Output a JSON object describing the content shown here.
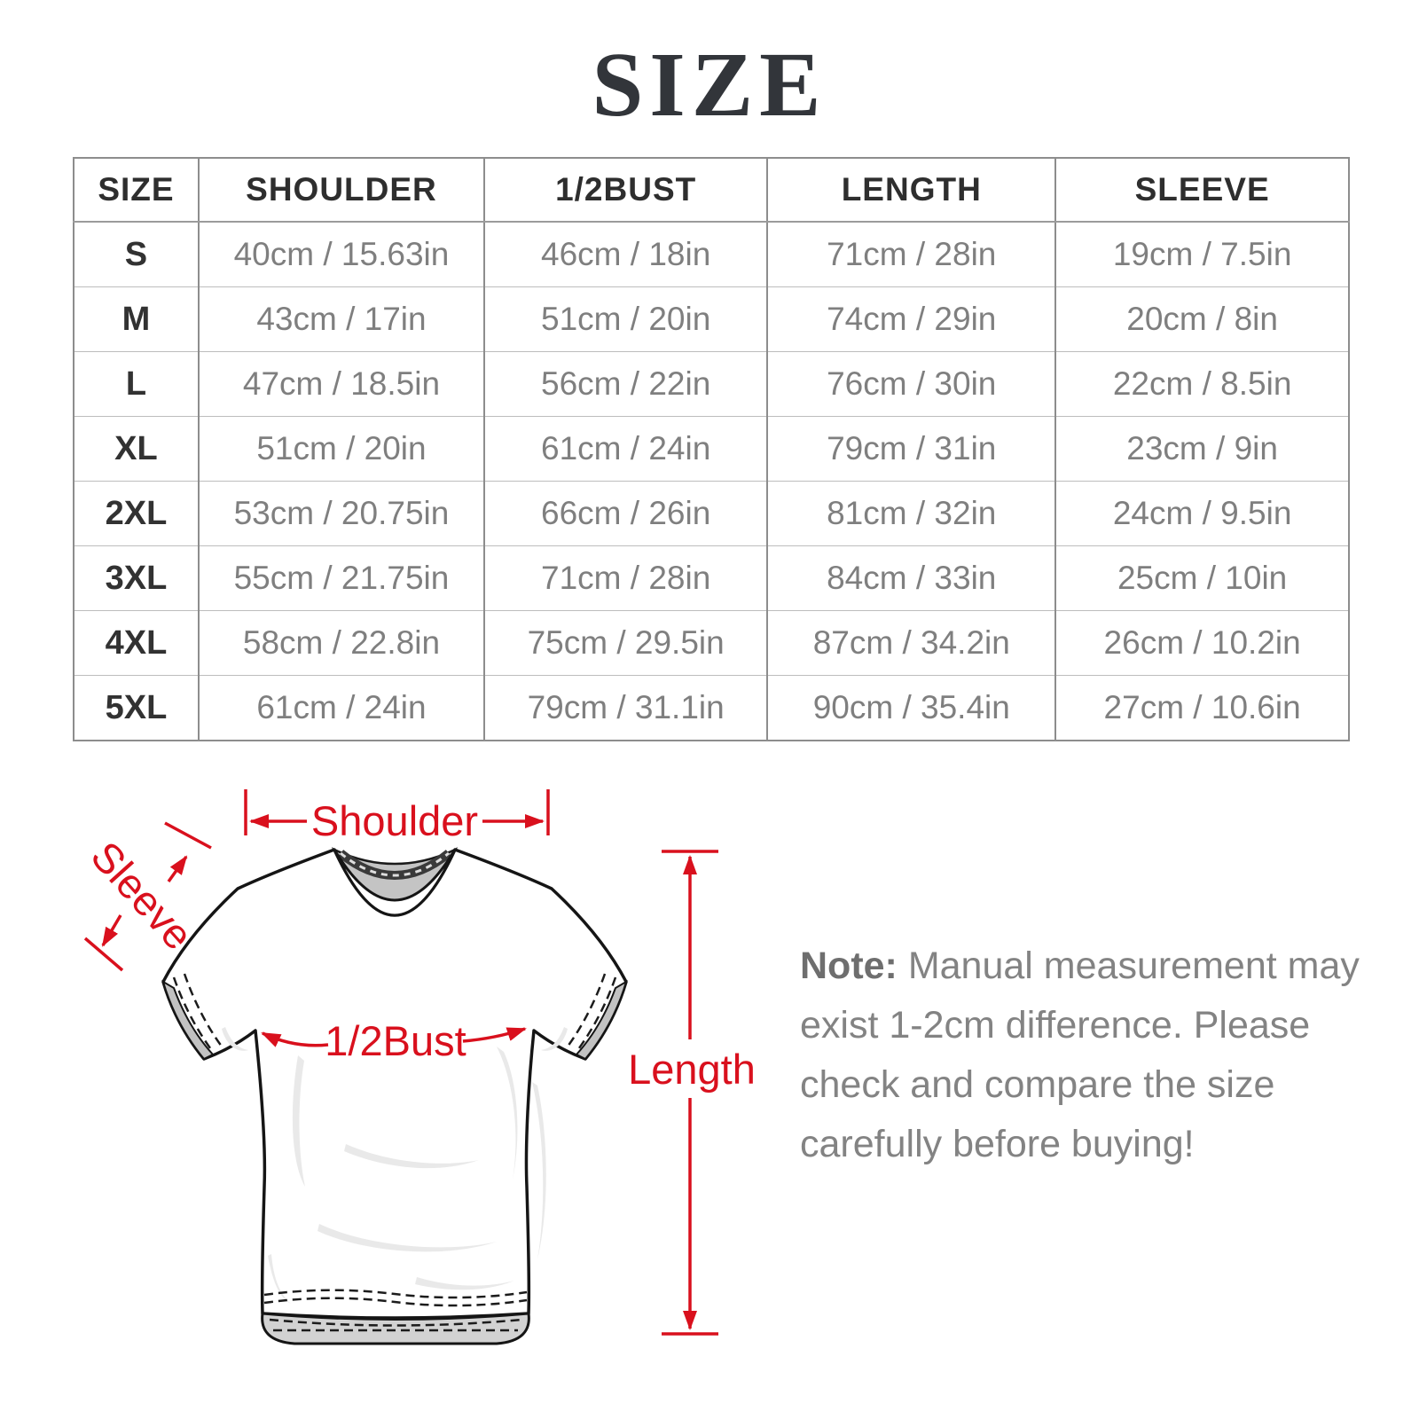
{
  "title": "SIZE",
  "table": {
    "columns": [
      "SIZE",
      "SHOULDER",
      "1/2BUST",
      "LENGTH",
      "SLEEVE"
    ],
    "rows": [
      [
        "S",
        "40cm / 15.63in",
        "46cm / 18in",
        "71cm / 28in",
        "19cm / 7.5in"
      ],
      [
        "M",
        "43cm / 17in",
        "51cm / 20in",
        "74cm / 29in",
        "20cm / 8in"
      ],
      [
        "L",
        "47cm / 18.5in",
        "56cm / 22in",
        "76cm / 30in",
        "22cm / 8.5in"
      ],
      [
        "XL",
        "51cm / 20in",
        "61cm / 24in",
        "79cm / 31in",
        "23cm / 9in"
      ],
      [
        "2XL",
        "53cm / 20.75in",
        "66cm / 26in",
        "81cm / 32in",
        "24cm / 9.5in"
      ],
      [
        "3XL",
        "55cm / 21.75in",
        "71cm / 28in",
        "84cm / 33in",
        "25cm / 10in"
      ],
      [
        "4XL",
        "58cm / 22.8in",
        "75cm / 29.5in",
        "87cm / 34.2in",
        "26cm / 10.2in"
      ],
      [
        "5XL",
        "61cm / 24in",
        "79cm / 31.1in",
        "90cm / 35.4in",
        "27cm / 10.6in"
      ]
    ]
  },
  "diagram": {
    "labels": {
      "shoulder": "Shoulder",
      "sleeve": "Sleeve",
      "half_bust": "1/2Bust",
      "length": "Length"
    },
    "accent_color": "#d9101d"
  },
  "note": {
    "prefix": "Note:",
    "body": " Manual measurement may exist 1-2cm difference. Please check and compare the size carefully before buying!"
  }
}
